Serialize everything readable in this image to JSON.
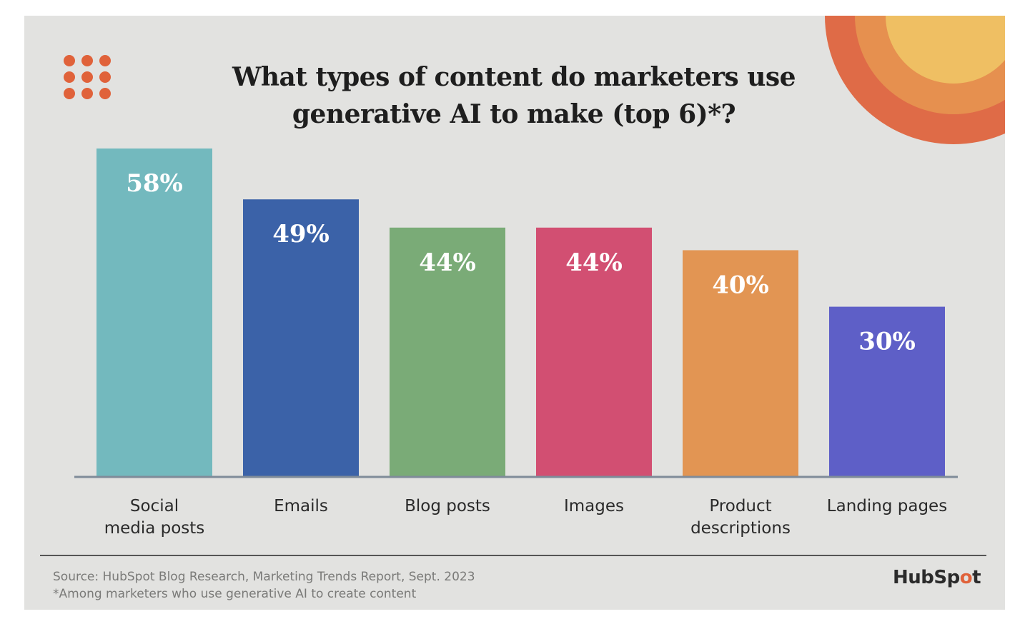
{
  "title_line1": "What types of content do marketers use",
  "title_line2": "generative AI to make (top 6)*?",
  "chart_data": {
    "type": "bar",
    "title": "What types of content do marketers use generative AI to make (top 6)*?",
    "categories": [
      [
        "Social",
        "media posts"
      ],
      [
        "Emails"
      ],
      [
        "Blog posts"
      ],
      [
        "Images"
      ],
      [
        "Product",
        "descriptions"
      ],
      [
        "Landing pages"
      ]
    ],
    "values": [
      58,
      49,
      44,
      44,
      40,
      30
    ],
    "value_labels": [
      "58%",
      "49%",
      "44%",
      "44%",
      "40%",
      "30%"
    ],
    "colors": [
      "#73b9be",
      "#3b62a8",
      "#7aab77",
      "#d24f72",
      "#e29553",
      "#5e5fc7"
    ],
    "unit": "%",
    "ylim": [
      0,
      58
    ],
    "grid": false,
    "legend": "none"
  },
  "footer": {
    "source": "Source: HubSpot Blog Research, Marketing Trends Report, Sept. 2023",
    "note": "*Among marketers who use generative AI to create content"
  },
  "brand": {
    "logo_part1": "HubSp",
    "logo_part2": "o",
    "logo_part3": "t",
    "accent": "#e0623a"
  },
  "icons": [
    "dot-grid-icon",
    "sunburst-decoration",
    "hubspot-sprocket-icon"
  ]
}
